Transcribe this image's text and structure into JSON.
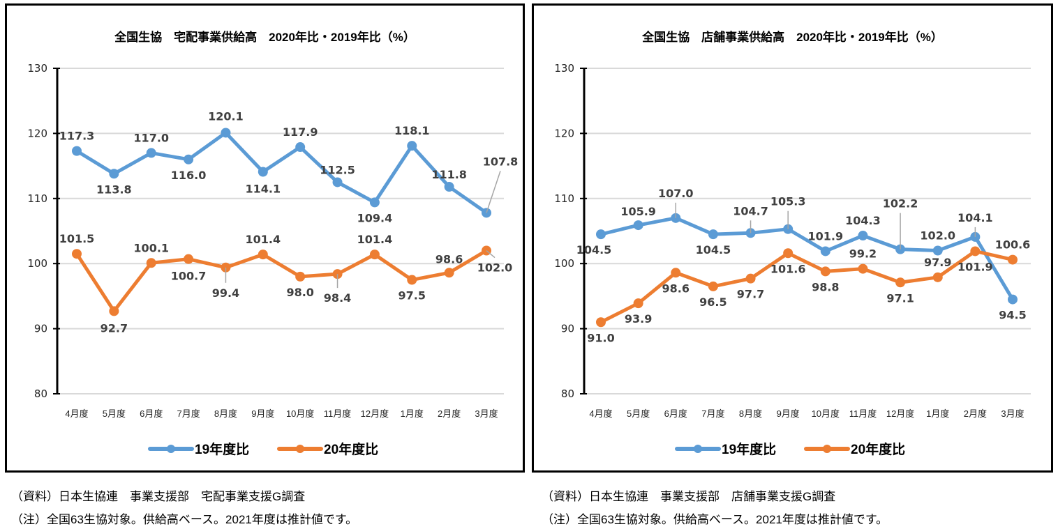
{
  "colors": {
    "series19": "#5B9BD5",
    "series20": "#ED7D31",
    "grid": "#D9D9D9",
    "label": "#404040"
  },
  "chart_data": [
    {
      "type": "line",
      "title": "全国生協　宅配事業供給高　2020年比・2019年比（%）",
      "categories": [
        "4月度",
        "5月度",
        "6月度",
        "7月度",
        "8月度",
        "9月度",
        "10月度",
        "11月度",
        "12月度",
        "1月度",
        "2月度",
        "3月度"
      ],
      "ylim": [
        80,
        130
      ],
      "yticks": [
        80,
        90,
        100,
        110,
        120,
        130
      ],
      "grid": true,
      "legend_position": "bottom",
      "series": [
        {
          "name": "19年度比",
          "values": [
            117.3,
            113.8,
            117.0,
            116.0,
            120.1,
            114.1,
            117.9,
            112.5,
            109.4,
            118.1,
            111.8,
            107.8
          ]
        },
        {
          "name": "20年度比",
          "values": [
            101.5,
            92.7,
            100.1,
            100.7,
            99.4,
            101.4,
            98.0,
            98.4,
            101.4,
            97.5,
            98.6,
            102.0
          ]
        }
      ]
    },
    {
      "type": "line",
      "title": "全国生協　店舗事業供給高　2020年比・2019年比（%）",
      "categories": [
        "4月度",
        "5月度",
        "6月度",
        "7月度",
        "8月度",
        "9月度",
        "10月度",
        "11月度",
        "12月度",
        "1月度",
        "2月度",
        "3月度"
      ],
      "ylim": [
        80,
        130
      ],
      "yticks": [
        80,
        90,
        100,
        110,
        120,
        130
      ],
      "grid": true,
      "legend_position": "bottom",
      "series": [
        {
          "name": "19年度比",
          "values": [
            104.5,
            105.9,
            107.0,
            104.5,
            104.7,
            105.3,
            101.9,
            104.3,
            102.2,
            102.0,
            104.1,
            94.5
          ]
        },
        {
          "name": "20年度比",
          "values": [
            91.0,
            93.9,
            98.6,
            96.5,
            97.7,
            101.6,
            98.8,
            99.2,
            97.1,
            97.9,
            101.9,
            100.6
          ]
        }
      ]
    }
  ],
  "notes": {
    "left": {
      "source": "（資料）日本生協連　事業支援部　宅配事業支援G調査",
      "note": "（注）全国63生協対象。供給高ベース。2021年度は推計値です。"
    },
    "right": {
      "source": "（資料）日本生協連　事業支援部　店舗事業支援G調査",
      "note": "（注）全国63生協対象。供給高ベース。2021年度は推計値です。"
    }
  }
}
